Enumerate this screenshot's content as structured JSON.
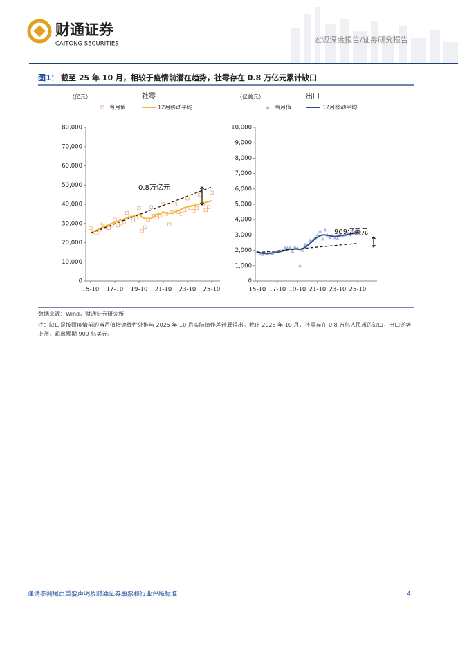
{
  "header": {
    "brand": "财通证券",
    "brand_en": "CAITONG SECURITIES",
    "report_type": "宏观深度报告/证券研究报告"
  },
  "figure_title": {
    "label": "图1：",
    "text": "截至 25 年 10 月，相较于疫情前潜在趋势，社零存在 0.8 万亿元累计缺口"
  },
  "chart_data": [
    {
      "type": "line",
      "title": "社零",
      "unit": "（亿元）",
      "x": [
        "15-10",
        "16-01",
        "16-04",
        "16-07",
        "16-10",
        "17-01",
        "17-04",
        "17-07",
        "17-10",
        "18-01",
        "18-04",
        "18-07",
        "18-10",
        "19-01",
        "19-04",
        "19-07",
        "19-10",
        "20-01",
        "20-04",
        "20-07",
        "20-10",
        "21-01",
        "21-04",
        "21-07",
        "21-10",
        "22-01",
        "22-04",
        "22-07",
        "22-10",
        "23-01",
        "23-04",
        "23-07",
        "23-10",
        "24-01",
        "24-04",
        "24-07",
        "24-10",
        "25-01",
        "25-04",
        "25-07",
        "25-10"
      ],
      "series": [
        {
          "name": "当月值",
          "color": "#f4b183",
          "mark": "square",
          "values": [
            27600,
            25500,
            25000,
            26800,
            30000,
            28000,
            27600,
            29000,
            32000,
            29000,
            30000,
            31000,
            35500,
            33000,
            31500,
            33000,
            38000,
            26000,
            28000,
            32000,
            38500,
            34000,
            33000,
            34000,
            40000,
            35000,
            29500,
            35800,
            40000,
            36000,
            35000,
            37000,
            43000,
            38000,
            36500,
            38000,
            45000,
            40000,
            37000,
            38500,
            46000
          ]
        },
        {
          "name": "12月移动平均",
          "color": "#f5b731",
          "mark": "line",
          "values": [
            25000,
            25800,
            26500,
            27200,
            28000,
            28700,
            29400,
            30000,
            30500,
            31200,
            31800,
            32300,
            33000,
            33300,
            33800,
            34200,
            34800,
            33200,
            32600,
            32400,
            32600,
            33700,
            34800,
            35200,
            36000,
            35300,
            35400,
            35400,
            36200,
            36600,
            37400,
            38200,
            38700,
            39100,
            39400,
            39800,
            40200,
            40600,
            41000,
            41400,
            41800
          ]
        }
      ],
      "trend": {
        "x": [
          "15-10",
          "25-10"
        ],
        "values": [
          25000,
          49000
        ]
      },
      "annotations": [
        "0.8万亿元"
      ],
      "xlim": [
        "15-10",
        "25-10"
      ],
      "xticks": [
        "15-10",
        "17-10",
        "19-10",
        "21-10",
        "23-10",
        "25-10"
      ],
      "ylim": [
        0,
        80000
      ],
      "yticks": [
        0,
        {
          "value": 10000,
          "label": "10,000"
        },
        {
          "value": 20000,
          "label": "20,000"
        },
        {
          "value": 30000,
          "label": "30,000"
        },
        {
          "value": 40000,
          "label": "40,000"
        },
        {
          "value": 50000,
          "label": "50,000"
        },
        {
          "value": 60000,
          "label": "60,000"
        },
        {
          "value": 70000,
          "label": "70,000"
        },
        {
          "value": 80000,
          "label": "80,000"
        }
      ]
    },
    {
      "type": "line",
      "title": "出口",
      "unit": "（亿美元）",
      "x": [
        "15-10",
        "16-01",
        "16-04",
        "16-07",
        "16-10",
        "17-01",
        "17-04",
        "17-07",
        "17-10",
        "18-01",
        "18-04",
        "18-07",
        "18-10",
        "19-01",
        "19-04",
        "19-07",
        "19-10",
        "20-01",
        "20-04",
        "20-07",
        "20-10",
        "21-01",
        "21-04",
        "21-07",
        "21-10",
        "22-01",
        "22-04",
        "22-07",
        "22-10",
        "23-01",
        "23-04",
        "23-07",
        "23-10",
        "24-01",
        "24-04",
        "24-07",
        "24-10",
        "25-01",
        "25-04",
        "25-07",
        "25-10"
      ],
      "series": [
        {
          "name": "当月值",
          "color": "#aab8d8",
          "mark": "triangle",
          "values": [
            1925,
            1770,
            1730,
            1840,
            1780,
            1820,
            1800,
            1940,
            1890,
            2000,
            2000,
            2160,
            2170,
            2170,
            1930,
            2220,
            2130,
            1000,
            2000,
            2380,
            2370,
            2650,
            2630,
            2820,
            3000,
            3250,
            2730,
            3320,
            2980,
            2830,
            2950,
            2820,
            2750,
            3070,
            2920,
            3000,
            3090,
            3000,
            3150,
            3220,
            3050
          ]
        },
        {
          "name": "12月移动平均",
          "color": "#2f4e8c",
          "mark": "line",
          "values": [
            1900,
            1850,
            1800,
            1790,
            1790,
            1810,
            1830,
            1860,
            1880,
            1910,
            1960,
            2000,
            2050,
            2080,
            2070,
            2090,
            2100,
            2050,
            2100,
            2200,
            2300,
            2450,
            2600,
            2750,
            2850,
            2950,
            3000,
            3000,
            2980,
            2950,
            2900,
            2900,
            2920,
            2950,
            2970,
            3000,
            3020,
            3060,
            3100,
            3130,
            3150
          ]
        }
      ],
      "trend": {
        "x": [
          "15-10",
          "25-10"
        ],
        "values": [
          1850,
          2450
        ]
      },
      "annotations": [
        "909亿美元"
      ],
      "xlim": [
        "15-10",
        "25-10"
      ],
      "xticks": [
        "15-10",
        "17-10",
        "19-10",
        "21-10",
        "23-10",
        "25-10"
      ],
      "ylim": [
        0,
        10000
      ],
      "yticks": [
        0,
        {
          "value": 1000,
          "label": "1,000"
        },
        {
          "value": 2000,
          "label": "2,000"
        },
        {
          "value": 3000,
          "label": "3,000"
        },
        {
          "value": 4000,
          "label": "4,000"
        },
        {
          "value": 5000,
          "label": "5,000"
        },
        {
          "value": 6000,
          "label": "6,000"
        },
        {
          "value": 7000,
          "label": "7,000"
        },
        {
          "value": 8000,
          "label": "8,000"
        },
        {
          "value": 9000,
          "label": "9,000"
        },
        {
          "value": 10000,
          "label": "10,000"
        }
      ]
    }
  ],
  "source": "数据来源：Wind，财通证券研究所",
  "note": "注：缺口是按照疫情前的当月值增速线性外推与 2025 年 10 月实际值作差计算得出。截止 2025 年 10 月，社零存在 0.8 万亿人民币的缺口，出口逆势上涨，超出预期 909 亿美元。",
  "footer": {
    "disclaimer": "谨请参阅尾页重要声明及财通证券股票和行业评级标准",
    "page": "4"
  }
}
